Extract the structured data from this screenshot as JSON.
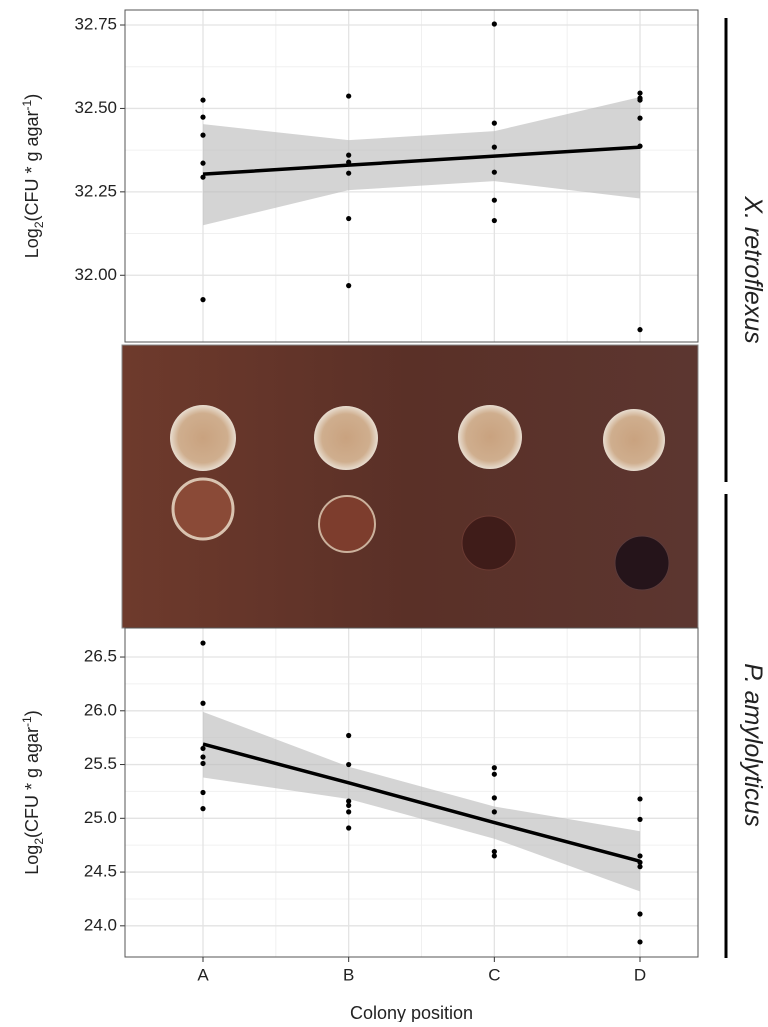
{
  "chart_data": [
    {
      "type": "scatter",
      "side_label": "X. retroflexus",
      "y_label": {
        "main": "Log",
        "sub": "2",
        "mid": "(CFU * g agar",
        "sup": "-1",
        "end": ")"
      },
      "categories": [
        null,
        null,
        null,
        null
      ],
      "values": [
        [
          32.525,
          32.474,
          32.42,
          32.336,
          32.294,
          31.927
        ],
        [
          32.537,
          32.36,
          32.339,
          32.306,
          32.17,
          31.969
        ],
        [
          32.753,
          32.456,
          32.384,
          32.309,
          32.225,
          32.164
        ],
        [
          32.546,
          32.531,
          32.525,
          32.471,
          32.387,
          31.837
        ]
      ],
      "fit": {
        "values": [
          32.303,
          32.33,
          32.357,
          32.384
        ],
        "lower": [
          32.15,
          32.255,
          32.282,
          32.23
        ],
        "upper": [
          32.453,
          32.405,
          32.432,
          32.534
        ]
      },
      "ylim": [
        31.8,
        32.795
      ],
      "yticks": [
        {
          "value": 32,
          "label": "32.00"
        },
        32.25,
        {
          "value": 32.5,
          "label": "32.50"
        },
        32.75
      ],
      "grid": true,
      "minor_grid": true,
      "color": "#000000",
      "band_color": "#bdbdbd"
    },
    {
      "type": "scatter",
      "side_label": "P. amylolyticus",
      "x_label": "Colony position",
      "y_label": {
        "main": "Log",
        "sub": "2",
        "mid": "(CFU * g agar",
        "sup": "-1",
        "end": ")"
      },
      "categories": [
        "A",
        "B",
        "C",
        "D"
      ],
      "values": [
        [
          26.63,
          26.07,
          25.65,
          25.57,
          25.51,
          25.24,
          25.09
        ],
        [
          25.77,
          25.5,
          25.16,
          25.12,
          25.06,
          24.91
        ],
        [
          25.47,
          25.41,
          25.19,
          25.06,
          24.69,
          24.65
        ],
        [
          25.18,
          24.99,
          24.65,
          24.59,
          24.55,
          24.11,
          23.85
        ]
      ],
      "fit": {
        "values": [
          25.69,
          25.33,
          24.96,
          24.6
        ],
        "lower": [
          25.38,
          25.18,
          24.81,
          24.32
        ],
        "upper": [
          25.99,
          25.48,
          25.11,
          24.88
        ]
      },
      "ylim": [
        23.71,
        26.77
      ],
      "yticks": [
        {
          "value": 24,
          "label": "24.0"
        },
        24.5,
        {
          "value": 25,
          "label": "25.0"
        },
        25.5,
        {
          "value": 26,
          "label": "26.0"
        },
        26.5
      ],
      "grid": true,
      "minor_grid": true,
      "color": "#000000",
      "band_color": "#bdbdbd"
    }
  ]
}
